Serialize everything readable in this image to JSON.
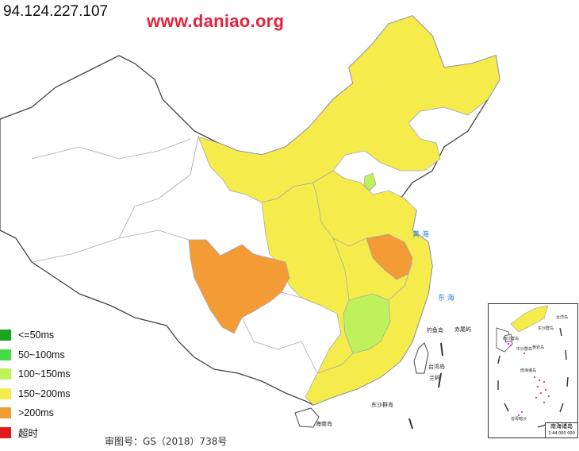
{
  "header": {
    "ip": "94.124.227.107",
    "site": "www.daniao.org"
  },
  "legend": [
    {
      "label": "<=50ms",
      "color": "#1aa51a"
    },
    {
      "label": "50~100ms",
      "color": "#44dd44"
    },
    {
      "label": "100~150ms",
      "color": "#bff25a"
    },
    {
      "label": "150~200ms",
      "color": "#f5ec4c"
    },
    {
      "label": ">200ms",
      "color": "#f39b35"
    },
    {
      "label": "超时",
      "color": "#e11b1b"
    }
  ],
  "approval": "审图号：GS（2018）738号",
  "map_labels": {
    "yellow_sea": "黄 海",
    "east_sea": "东 海",
    "taiwan": "台湾岛",
    "diaoyu": "钓鱼岛",
    "chiwei": "赤尾屿",
    "lanyu": "兰屿",
    "dongsha": "东沙群岛",
    "hainan": "海南岛",
    "inset_taiwan": "台湾岛",
    "inset_dongsha": "东沙群岛",
    "inset_xisha": "西沙群岛",
    "inset_zhongsha": "中沙群岛",
    "inset_huangyan": "黄岩岛",
    "inset_nansha": "南海诸岛",
    "inset_zengmu": "曾母暗沙",
    "inset_title": "南海诸岛",
    "inset_scale": "1:44 000 000"
  },
  "region_colors": {
    "beijing": "#bff25a",
    "jiangxi": "#bff25a",
    "sichuan": "#f39b35",
    "jiangsu": "#f39b35",
    "north_band": "#f5ec4c",
    "central": "#f5ec4c",
    "none": "#ffffff",
    "border": "#aaaaaa",
    "sea_text": "#2a7fd4"
  }
}
